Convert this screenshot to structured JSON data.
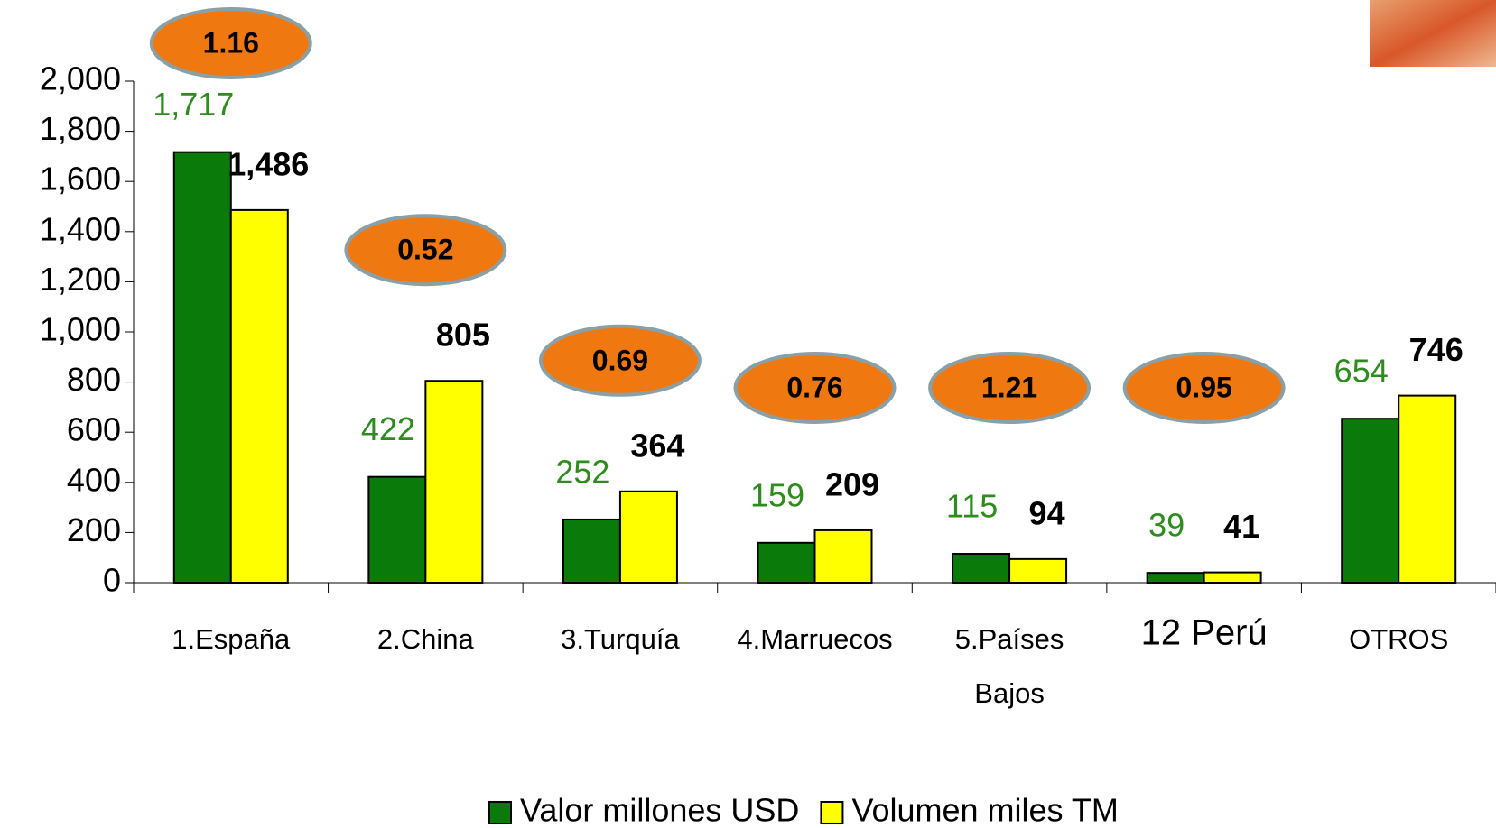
{
  "chart_data": {
    "type": "bar",
    "categories": [
      "1.España",
      "2.China",
      "3.Turquía",
      "4.Marruecos",
      "5.Países Bajos",
      "12 Perú",
      "OTROS"
    ],
    "series": [
      {
        "name": "Valor millones USD",
        "color": "#0a7a0a",
        "label_color": "#2e8b1e",
        "values": [
          1717,
          422,
          252,
          159,
          115,
          39,
          654
        ],
        "value_labels": [
          "1,717",
          "422",
          "252",
          "159",
          "115",
          "39",
          "654"
        ]
      },
      {
        "name": "Volumen miles TM",
        "color": "#ffff00",
        "label_color": "#000000",
        "values": [
          1486,
          805,
          364,
          209,
          94,
          41,
          746
        ],
        "value_labels": [
          "1,486",
          "805",
          "364",
          "209",
          "94",
          "41",
          "746"
        ]
      }
    ],
    "ratios": [
      1.16,
      0.52,
      0.69,
      0.76,
      1.21,
      0.95,
      null
    ],
    "ratio_color": "#f07810",
    "highlight_index": 5,
    "highlight_color": "#ff0000",
    "ylim": [
      0,
      2000
    ],
    "yticks": [
      0,
      200,
      400,
      600,
      800,
      {
        "value": 1000,
        "label": "1,000"
      },
      {
        "value": 1200,
        "label": "1,200"
      },
      {
        "value": 1400,
        "label": "1,400"
      },
      {
        "value": 1600,
        "label": "1,600"
      },
      {
        "value": 1800,
        "label": "1,800"
      },
      {
        "value": 2000,
        "label": "2,000"
      }
    ],
    "legend": "bottom"
  }
}
